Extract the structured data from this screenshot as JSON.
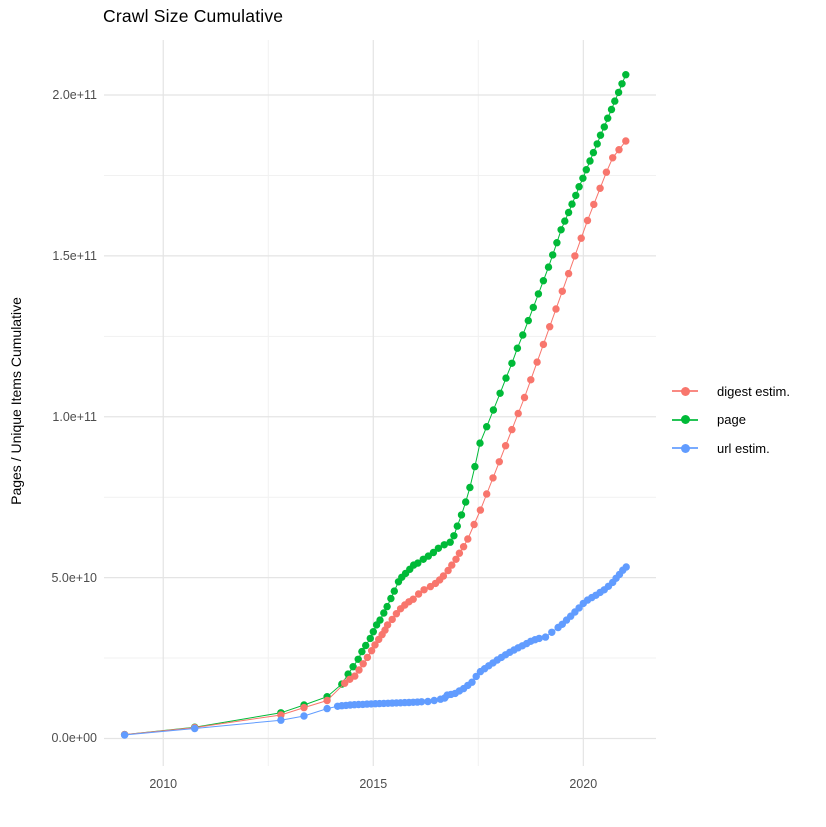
{
  "chart_data": {
    "type": "line",
    "title": "Crawl Size Cumulative",
    "xlabel": "",
    "ylabel": "Pages / Unique Items Cumulative",
    "value_scale": "1e9",
    "grid": "on",
    "legend_position": "right",
    "xlim": [
      2008.59,
      2021.73
    ],
    "ylim": [
      -8.55,
      217.1
    ],
    "x_ticks": [
      {
        "value": 2010,
        "label": "2010"
      },
      {
        "value": 2015,
        "label": "2015"
      },
      {
        "value": 2020,
        "label": "2020"
      }
    ],
    "x_minor_ticks": [
      2012.5,
      2017.5
    ],
    "y_ticks": [
      {
        "value": 0,
        "label": "0.0e+00"
      },
      {
        "value": 50,
        "label": "5.0e+10"
      },
      {
        "value": 100,
        "label": "1.0e+11"
      },
      {
        "value": 150,
        "label": "1.5e+11"
      },
      {
        "value": 200,
        "label": "2.0e+11"
      }
    ],
    "y_minor_ticks": [
      25,
      75,
      125,
      175
    ],
    "colors": {
      "major_grid": "#e4e4e4",
      "minor_grid": "#f1f1f1",
      "tick_text": "#4d4d4d"
    },
    "series": [
      {
        "name": "page",
        "color": "#00BA38",
        "points": [
          [
            2009.08,
            1.2
          ],
          [
            2010.75,
            3.5
          ],
          [
            2012.8,
            8.0
          ],
          [
            2013.35,
            10.4
          ],
          [
            2013.9,
            13.0
          ],
          [
            2014.25,
            16.9
          ],
          [
            2014.4,
            20.0
          ],
          [
            2014.52,
            22.3
          ],
          [
            2014.64,
            24.6
          ],
          [
            2014.73,
            27.0
          ],
          [
            2014.82,
            28.9
          ],
          [
            2014.93,
            31.1
          ],
          [
            2015.0,
            33.2
          ],
          [
            2015.08,
            35.3
          ],
          [
            2015.16,
            36.8
          ],
          [
            2015.25,
            39.0
          ],
          [
            2015.33,
            41.0
          ],
          [
            2015.42,
            43.5
          ],
          [
            2015.5,
            45.8
          ],
          [
            2015.6,
            48.7
          ],
          [
            2015.68,
            50.1
          ],
          [
            2015.77,
            51.3
          ],
          [
            2015.87,
            52.6
          ],
          [
            2015.96,
            53.9
          ],
          [
            2016.06,
            54.5
          ],
          [
            2016.19,
            55.7
          ],
          [
            2016.31,
            56.7
          ],
          [
            2016.43,
            57.8
          ],
          [
            2016.55,
            59.1
          ],
          [
            2016.69,
            60.2
          ],
          [
            2016.83,
            61.0
          ],
          [
            2016.92,
            63.0
          ],
          [
            2017.0,
            66.0
          ],
          [
            2017.1,
            69.5
          ],
          [
            2017.2,
            73.5
          ],
          [
            2017.3,
            78.0
          ],
          [
            2017.42,
            84.5
          ],
          [
            2017.54,
            91.8
          ],
          [
            2017.7,
            96.9
          ],
          [
            2017.86,
            102.1
          ],
          [
            2018.02,
            107.3
          ],
          [
            2018.16,
            112.0
          ],
          [
            2018.3,
            116.6
          ],
          [
            2018.43,
            121.3
          ],
          [
            2018.56,
            125.4
          ],
          [
            2018.69,
            129.9
          ],
          [
            2018.81,
            134.0
          ],
          [
            2018.93,
            138.2
          ],
          [
            2019.05,
            142.3
          ],
          [
            2019.17,
            146.5
          ],
          [
            2019.27,
            150.3
          ],
          [
            2019.37,
            154.1
          ],
          [
            2019.47,
            158.1
          ],
          [
            2019.56,
            160.8
          ],
          [
            2019.65,
            163.5
          ],
          [
            2019.73,
            166.1
          ],
          [
            2019.82,
            168.8
          ],
          [
            2019.9,
            171.5
          ],
          [
            2019.99,
            174.1
          ],
          [
            2020.07,
            176.8
          ],
          [
            2020.16,
            179.5
          ],
          [
            2020.24,
            182.1
          ],
          [
            2020.33,
            184.8
          ],
          [
            2020.41,
            187.5
          ],
          [
            2020.5,
            190.1
          ],
          [
            2020.58,
            192.8
          ],
          [
            2020.67,
            195.5
          ],
          [
            2020.75,
            198.1
          ],
          [
            2020.84,
            200.8
          ],
          [
            2020.92,
            203.5
          ],
          [
            2021.01,
            206.3
          ]
        ]
      },
      {
        "name": "digest estim.",
        "color": "#F8766D",
        "points": [
          [
            2009.08,
            1.2
          ],
          [
            2010.75,
            3.4
          ],
          [
            2012.8,
            7.3
          ],
          [
            2013.35,
            9.6
          ],
          [
            2013.9,
            11.8
          ],
          [
            2014.32,
            17.2
          ],
          [
            2014.44,
            18.4
          ],
          [
            2014.56,
            19.4
          ],
          [
            2014.66,
            21.3
          ],
          [
            2014.76,
            23.2
          ],
          [
            2014.86,
            25.2
          ],
          [
            2014.96,
            27.3
          ],
          [
            2015.04,
            29.1
          ],
          [
            2015.13,
            30.8
          ],
          [
            2015.21,
            32.3
          ],
          [
            2015.28,
            33.7
          ],
          [
            2015.34,
            35.3
          ],
          [
            2015.45,
            37.0
          ],
          [
            2015.55,
            38.8
          ],
          [
            2015.65,
            40.3
          ],
          [
            2015.75,
            41.5
          ],
          [
            2015.85,
            42.5
          ],
          [
            2015.95,
            43.3
          ],
          [
            2016.08,
            44.9
          ],
          [
            2016.21,
            46.2
          ],
          [
            2016.36,
            47.2
          ],
          [
            2016.48,
            48.2
          ],
          [
            2016.58,
            49.3
          ],
          [
            2016.67,
            50.5
          ],
          [
            2016.78,
            52.2
          ],
          [
            2016.87,
            53.9
          ],
          [
            2016.97,
            55.7
          ],
          [
            2017.05,
            57.6
          ],
          [
            2017.15,
            59.6
          ],
          [
            2017.25,
            62.0
          ],
          [
            2017.4,
            66.5
          ],
          [
            2017.55,
            71.0
          ],
          [
            2017.7,
            76.0
          ],
          [
            2017.85,
            81.0
          ],
          [
            2018.0,
            86.0
          ],
          [
            2018.15,
            91.0
          ],
          [
            2018.3,
            96.0
          ],
          [
            2018.45,
            101.0
          ],
          [
            2018.6,
            106.0
          ],
          [
            2018.75,
            111.5
          ],
          [
            2018.9,
            117.0
          ],
          [
            2019.05,
            122.5
          ],
          [
            2019.2,
            128.0
          ],
          [
            2019.35,
            133.5
          ],
          [
            2019.5,
            139.0
          ],
          [
            2019.65,
            144.5
          ],
          [
            2019.8,
            150.0
          ],
          [
            2019.95,
            155.5
          ],
          [
            2020.1,
            161.0
          ],
          [
            2020.25,
            166.0
          ],
          [
            2020.4,
            171.0
          ],
          [
            2020.55,
            176.0
          ],
          [
            2020.7,
            180.5
          ],
          [
            2020.85,
            183.0
          ],
          [
            2021.01,
            185.7
          ]
        ]
      },
      {
        "name": "url estim.",
        "color": "#619CFF",
        "points": [
          [
            2009.08,
            1.1
          ],
          [
            2010.75,
            3.1
          ],
          [
            2012.8,
            5.7
          ],
          [
            2013.35,
            7.0
          ],
          [
            2013.9,
            9.3
          ],
          [
            2014.15,
            10.0
          ],
          [
            2014.25,
            10.2
          ],
          [
            2014.35,
            10.3
          ],
          [
            2014.45,
            10.4
          ],
          [
            2014.55,
            10.5
          ],
          [
            2014.65,
            10.55
          ],
          [
            2014.75,
            10.6
          ],
          [
            2014.85,
            10.7
          ],
          [
            2014.95,
            10.75
          ],
          [
            2015.05,
            10.8
          ],
          [
            2015.15,
            10.85
          ],
          [
            2015.25,
            10.9
          ],
          [
            2015.35,
            10.95
          ],
          [
            2015.45,
            11.0
          ],
          [
            2015.55,
            11.05
          ],
          [
            2015.65,
            11.1
          ],
          [
            2015.75,
            11.15
          ],
          [
            2015.85,
            11.2
          ],
          [
            2015.95,
            11.25
          ],
          [
            2016.05,
            11.3
          ],
          [
            2016.15,
            11.4
          ],
          [
            2016.3,
            11.5
          ],
          [
            2016.45,
            11.8
          ],
          [
            2016.6,
            12.2
          ],
          [
            2016.7,
            12.6
          ],
          [
            2016.76,
            13.5
          ],
          [
            2016.85,
            13.7
          ],
          [
            2016.95,
            14.0
          ],
          [
            2017.05,
            14.8
          ],
          [
            2017.15,
            15.5
          ],
          [
            2017.25,
            16.5
          ],
          [
            2017.35,
            17.5
          ],
          [
            2017.45,
            19.3
          ],
          [
            2017.55,
            20.8
          ],
          [
            2017.65,
            21.7
          ],
          [
            2017.75,
            22.6
          ],
          [
            2017.85,
            23.5
          ],
          [
            2017.95,
            24.4
          ],
          [
            2018.05,
            25.2
          ],
          [
            2018.15,
            26.0
          ],
          [
            2018.25,
            26.8
          ],
          [
            2018.35,
            27.5
          ],
          [
            2018.45,
            28.2
          ],
          [
            2018.55,
            28.8
          ],
          [
            2018.65,
            29.5
          ],
          [
            2018.75,
            30.2
          ],
          [
            2018.85,
            30.7
          ],
          [
            2018.95,
            31.1
          ],
          [
            2019.1,
            31.5
          ],
          [
            2019.25,
            33.0
          ],
          [
            2019.4,
            34.5
          ],
          [
            2019.5,
            35.5
          ],
          [
            2019.6,
            36.8
          ],
          [
            2019.7,
            38.0
          ],
          [
            2019.8,
            39.3
          ],
          [
            2019.9,
            40.6
          ],
          [
            2020.0,
            42.0
          ],
          [
            2020.1,
            43.0
          ],
          [
            2020.2,
            43.8
          ],
          [
            2020.3,
            44.5
          ],
          [
            2020.4,
            45.4
          ],
          [
            2020.5,
            46.2
          ],
          [
            2020.6,
            47.3
          ],
          [
            2020.7,
            48.5
          ],
          [
            2020.78,
            49.8
          ],
          [
            2020.86,
            51.0
          ],
          [
            2020.94,
            52.3
          ],
          [
            2021.02,
            53.3
          ]
        ]
      }
    ],
    "legend_order": [
      "digest estim.",
      "page",
      "url estim."
    ]
  }
}
